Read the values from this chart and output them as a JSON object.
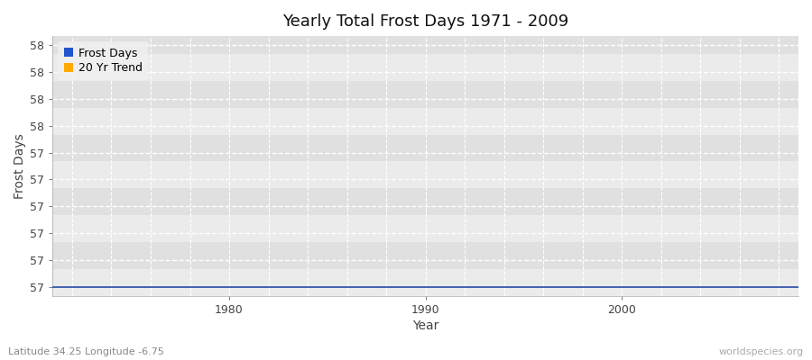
{
  "title": "Yearly Total Frost Days 1971 - 2009",
  "xlabel": "Year",
  "ylabel": "Frost Days",
  "subtitle": "Latitude 34.25 Longitude -6.75",
  "watermark": "worldspecies.org",
  "years": [
    1971,
    1972,
    1973,
    1974,
    1975,
    1976,
    1977,
    1978,
    1979,
    1980,
    1981,
    1982,
    1983,
    1984,
    1985,
    1986,
    1987,
    1988,
    1989,
    1990,
    1991,
    1992,
    1993,
    1994,
    1995,
    1996,
    1997,
    1998,
    1999,
    2000,
    2001,
    2002,
    2003,
    2004,
    2005,
    2006,
    2007,
    2008,
    2009
  ],
  "frost_days": [
    57.0,
    57.0,
    57.0,
    57.0,
    57.0,
    57.0,
    57.0,
    57.0,
    57.0,
    57.0,
    57.0,
    57.0,
    57.0,
    57.0,
    57.0,
    57.0,
    57.0,
    57.0,
    57.0,
    57.0,
    57.0,
    57.0,
    57.0,
    57.0,
    57.0,
    57.0,
    57.0,
    57.0,
    57.0,
    57.0,
    57.0,
    57.0,
    57.0,
    57.0,
    57.0,
    57.0,
    57.0,
    57.0,
    57.0
  ],
  "trend_days": [
    57.0,
    57.0,
    57.0,
    57.0,
    57.0,
    57.0,
    57.0,
    57.0,
    57.0,
    57.0,
    57.0,
    57.0,
    57.0,
    57.0,
    57.0,
    57.0,
    57.0,
    57.0,
    57.0,
    57.0,
    57.0,
    57.0,
    57.0,
    57.0,
    57.0,
    57.0,
    57.0,
    57.0,
    57.0,
    57.0,
    57.0,
    57.0,
    57.0,
    57.0,
    57.0,
    57.0,
    57.0,
    57.0,
    57.0
  ],
  "xlim": [
    1971.0,
    2009.0
  ],
  "ylim_bottom": 56.96,
  "ylim_top": 58.12,
  "ytick_positions": [
    57.0,
    57.12,
    57.24,
    57.36,
    57.48,
    57.6,
    57.72,
    57.84,
    57.96,
    58.08
  ],
  "ytick_labels": [
    "57",
    "57",
    "57",
    "57",
    "57",
    "57",
    "58",
    "58",
    "58",
    "58"
  ],
  "xticks": [
    1980,
    1990,
    2000
  ],
  "frost_color": "#2255cc",
  "trend_color": "#ffaa00",
  "plot_bg_color": "#ebebeb",
  "alt_band_color": "#e0e0e0",
  "grid_color": "#ffffff",
  "title_fontsize": 13,
  "axis_label_fontsize": 10,
  "tick_fontsize": 9,
  "legend_fontsize": 9,
  "num_bands": 11
}
